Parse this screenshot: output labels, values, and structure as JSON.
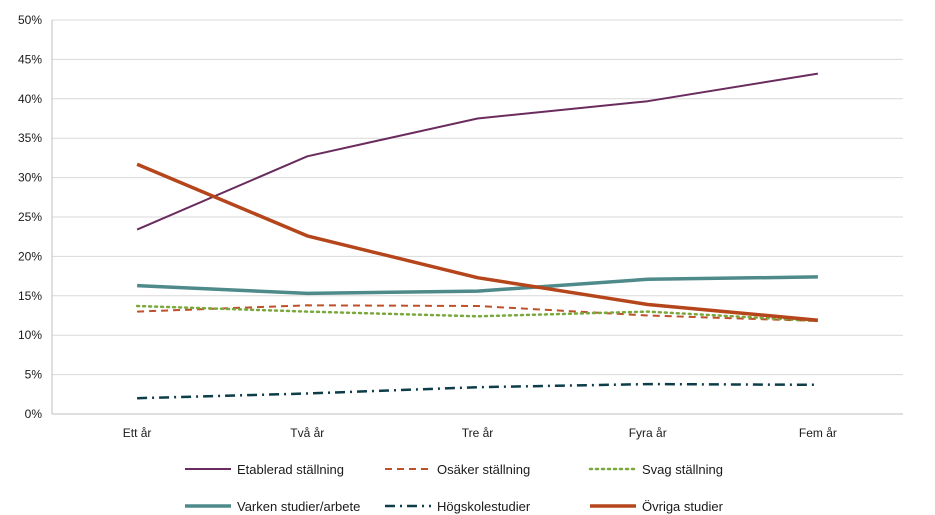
{
  "chart_data": {
    "type": "line",
    "title": "",
    "xlabel": "",
    "ylabel": "",
    "categories": [
      "Ett år",
      "Två år",
      "Tre år",
      "Fyra år",
      "Fem år"
    ],
    "ylim": [
      0,
      50
    ],
    "yticks": [
      "0%",
      "5%",
      "10%",
      "15%",
      "20%",
      "25%",
      "30%",
      "35%",
      "40%",
      "45%",
      "50%"
    ],
    "grid": true,
    "legend_position": "bottom",
    "series": [
      {
        "name": "Etablerad ställning",
        "values": [
          23.4,
          32.7,
          37.5,
          39.7,
          43.2
        ],
        "color": "#6a2c5e",
        "style": "solid",
        "width": 2
      },
      {
        "name": "Osäker ställning",
        "values": [
          13.0,
          13.8,
          13.7,
          12.5,
          11.8
        ],
        "color": "#c0502a",
        "style": "dashed",
        "width": 2
      },
      {
        "name": "Svag ställning",
        "values": [
          13.7,
          13.0,
          12.4,
          13.0,
          11.8
        ],
        "color": "#7aa83c",
        "style": "dotted",
        "width": 2.5
      },
      {
        "name": "Varken studier/arbete",
        "values": [
          16.3,
          15.3,
          15.6,
          17.1,
          17.4
        ],
        "color": "#4f8a8b",
        "style": "solid",
        "width": 3.5
      },
      {
        "name": "Högskolestudier",
        "values": [
          2.0,
          2.6,
          3.4,
          3.8,
          3.7
        ],
        "color": "#0e3d4a",
        "style": "dashdot",
        "width": 2.5
      },
      {
        "name": "Övriga studier",
        "values": [
          31.7,
          22.6,
          17.3,
          13.9,
          11.9
        ],
        "color": "#b5451b",
        "style": "solid",
        "width": 3.5
      }
    ]
  }
}
